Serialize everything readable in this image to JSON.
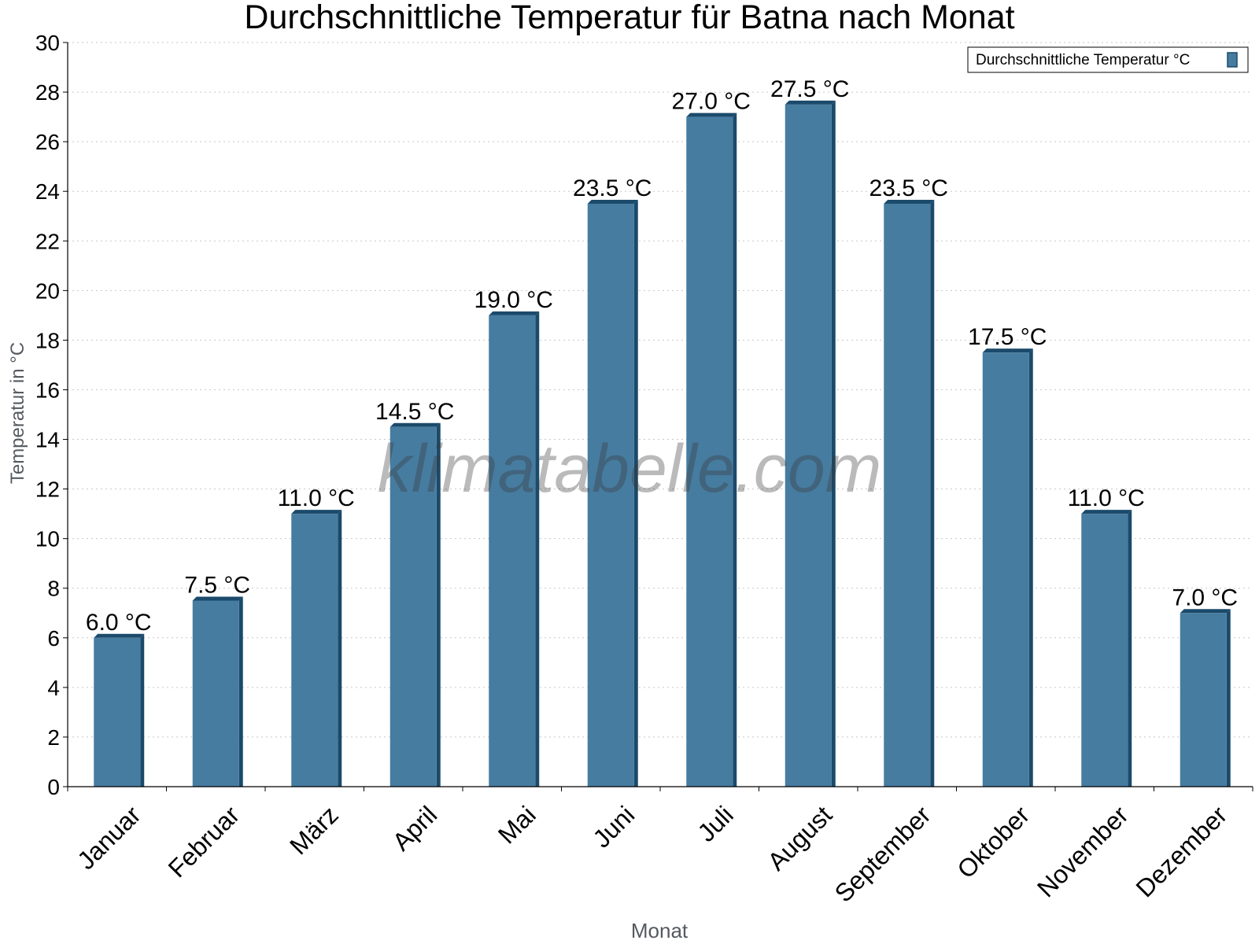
{
  "chart_data": {
    "type": "bar",
    "title": "Durchschnittliche Temperatur für Batna nach Monat",
    "xlabel": "Monat",
    "ylabel": "Temperatur in °C",
    "ylim": [
      0,
      30
    ],
    "ytick_step": 2,
    "grid": true,
    "legend_position": "top-right",
    "watermark": "klimatabelle.com",
    "unit_suffix": " °C",
    "categories": [
      "Januar",
      "Februar",
      "März",
      "April",
      "Mai",
      "Juni",
      "Juli",
      "August",
      "September",
      "Oktober",
      "November",
      "Dezember"
    ],
    "series": [
      {
        "name": "Durchschnittliche Temperatur °C",
        "color": "#467ca0",
        "edge_color": "#1b4a6b",
        "values": [
          6.0,
          7.5,
          11.0,
          14.5,
          19.0,
          23.5,
          27.0,
          27.5,
          23.5,
          17.5,
          11.0,
          7.0
        ]
      }
    ]
  }
}
